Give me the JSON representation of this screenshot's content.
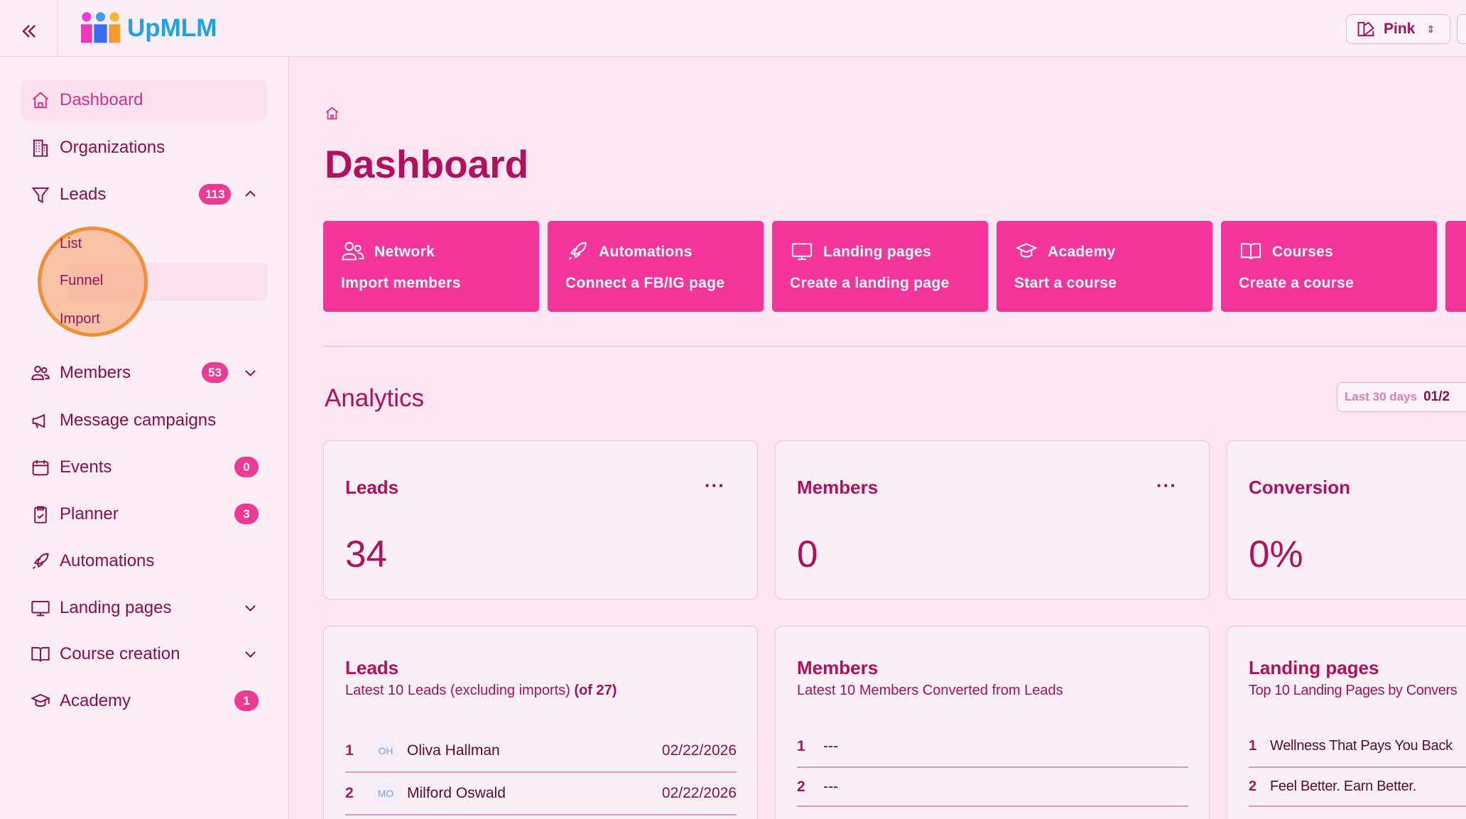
{
  "header": {
    "brand": "UpMLM",
    "theme_select": "Pink"
  },
  "sidebar": {
    "items": [
      {
        "label": "Dashboard",
        "icon": "home-icon"
      },
      {
        "label": "Organizations",
        "icon": "building-icon"
      },
      {
        "label": "Leads",
        "icon": "funnel-icon",
        "badge": "113"
      },
      {
        "label": "Members",
        "icon": "users-icon",
        "badge": "53"
      },
      {
        "label": "Message campaigns",
        "icon": "megaphone-icon"
      },
      {
        "label": "Events",
        "icon": "calendar-icon",
        "badge": "0"
      },
      {
        "label": "Planner",
        "icon": "clipboard-icon",
        "badge": "3"
      },
      {
        "label": "Automations",
        "icon": "rocket-icon"
      },
      {
        "label": "Landing pages",
        "icon": "monitor-icon"
      },
      {
        "label": "Course creation",
        "icon": "book-icon"
      },
      {
        "label": "Academy",
        "icon": "graduation-cap-icon",
        "badge": "1"
      }
    ],
    "leads_sub": [
      "List",
      "Funnel",
      "Import"
    ]
  },
  "main": {
    "title": "Dashboard",
    "actions": [
      {
        "title": "Network",
        "subtitle": "Import members"
      },
      {
        "title": "Automations",
        "subtitle": "Connect a FB/IG page"
      },
      {
        "title": "Landing pages",
        "subtitle": "Create a landing page"
      },
      {
        "title": "Academy",
        "subtitle": "Start a course"
      },
      {
        "title": "Courses",
        "subtitle": "Create a course"
      }
    ],
    "analytics": {
      "title": "Analytics",
      "range_label": "Last 30 days",
      "range_value": "01/2"
    },
    "stats": [
      {
        "title": "Leads",
        "value": "34"
      },
      {
        "title": "Members",
        "value": "0"
      },
      {
        "title": "Conversion",
        "value": "0%"
      }
    ],
    "lists": {
      "leads": {
        "title": "Leads",
        "subtitle": "Latest 10 Leads (excluding imports)",
        "count": "(of 27)",
        "rows": [
          {
            "n": "1",
            "initials": "OH",
            "name": "Oliva Hallman",
            "date": "02/22/2026"
          },
          {
            "n": "2",
            "initials": "MO",
            "name": "Milford Oswald",
            "date": "02/22/2026"
          }
        ]
      },
      "members": {
        "title": "Members",
        "subtitle": "Latest 10 Members Converted from Leads",
        "rows": [
          {
            "n": "1",
            "name": "---"
          },
          {
            "n": "2",
            "name": "---"
          }
        ]
      },
      "landing": {
        "title": "Landing pages",
        "subtitle": "Top 10 Landing Pages by Convers",
        "rows": [
          {
            "n": "1",
            "name": "Wellness That Pays You Back"
          },
          {
            "n": "2",
            "name": "Feel Better. Earn Better."
          }
        ]
      }
    }
  },
  "colors": {
    "accent": "#f5359a",
    "text": "#b0105c",
    "brand": "#1aa3e8"
  }
}
